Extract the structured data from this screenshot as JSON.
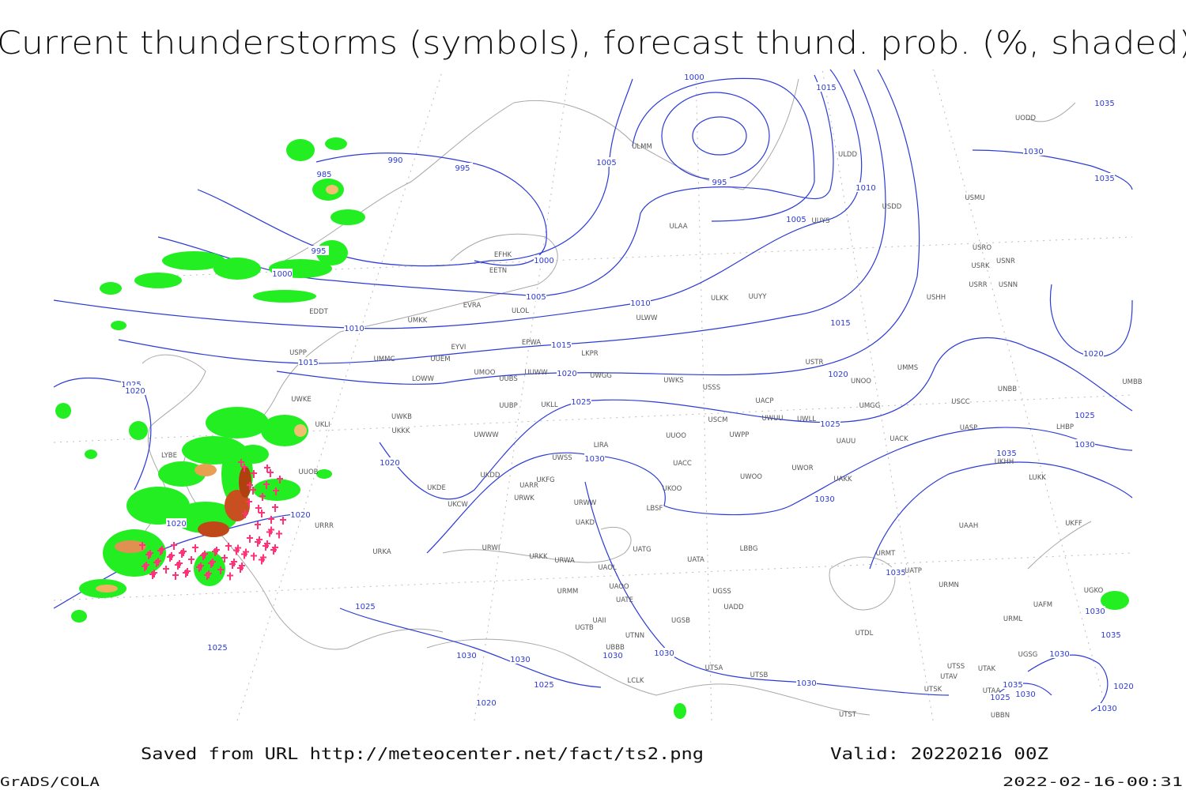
{
  "title": "Current thunderstorms (symbols), forecast thund. prob. (%, shaded)",
  "isobar_labels": [
    "1000",
    "1015",
    "990",
    "995",
    "1005",
    "985",
    "995",
    "1010",
    "1005",
    "995",
    "1000",
    "1000",
    "1005",
    "1010",
    "1010",
    "1015",
    "1015",
    "1015",
    "1020",
    "1020",
    "1025",
    "1020",
    "1025",
    "1025",
    "1030",
    "1020",
    "1030",
    "1020",
    "1020",
    "1035",
    "1025",
    "1025",
    "1030",
    "1030",
    "1030",
    "1030",
    "1025",
    "1030",
    "1020",
    "1035",
    "1030",
    "1035",
    "1020",
    "1025",
    "1030",
    "1035",
    "1030",
    "1035",
    "1030",
    "1035",
    "1030",
    "1025",
    "1020",
    "1030"
  ],
  "stations": [
    "ULMM",
    "ULDD",
    "UODD",
    "USDD",
    "USMU",
    "ULAA",
    "UUYS",
    "USRO",
    "USRK",
    "USNR",
    "USRR",
    "USNN",
    "USHH",
    "EFHK",
    "EETN",
    "EVRA",
    "ULOL",
    "EDDT",
    "UMKK",
    "ULKK",
    "UUYY",
    "ULWW",
    "EYVI",
    "EPWA",
    "UMMC",
    "UUEM",
    "LKPR",
    "USPP",
    "USTR",
    "UMMS",
    "UMOO",
    "UUBS",
    "UUWW",
    "UWGG",
    "UWKS",
    "USSS",
    "UNOO",
    "UNBB",
    "UMBB",
    "LOWW",
    "UWKE",
    "UACP",
    "USCC",
    "UMGG",
    "UUBP",
    "UKLL",
    "UWKB",
    "UWUU",
    "UWLL",
    "USCM",
    "UAUU",
    "UACK",
    "UASP",
    "LHBP",
    "UKLI",
    "UKKK",
    "UWWW",
    "UWPP",
    "UUOO",
    "LIRA",
    "LYBE",
    "UUOB",
    "UWSS",
    "UACC",
    "UKHH",
    "UKFG",
    "UKDD",
    "UARR",
    "UWOO",
    "UWOR",
    "UAKK",
    "LUKK",
    "UKDE",
    "URWK",
    "UKOO",
    "UKCW",
    "URWW",
    "LBSF",
    "URRR",
    "UAKD",
    "UAAH",
    "UKFF",
    "URWI",
    "UATG",
    "LBBG",
    "URKA",
    "URKK",
    "URWA",
    "UATA",
    "URMT",
    "UAOL",
    "UATP",
    "UGSS",
    "URMM",
    "UAOO",
    "URMN",
    "UATE",
    "UADD",
    "UAFM",
    "UGKO",
    "UAII",
    "URML",
    "UGSB",
    "UGTB",
    "UTNN",
    "UTDL",
    "UGSG",
    "UBBB",
    "UTSA",
    "UTSS",
    "UTAK",
    "UTSB",
    "UTAV",
    "UTSK",
    "UTAA",
    "UTST",
    "UBBN",
    "LCLK"
  ],
  "footer": {
    "source": "Saved from URL http://meteocenter.net/fact/ts2.png",
    "valid": "Valid: 20220216 00Z",
    "software": "GrADS/COLA",
    "timestamp": "2022-02-16-00:31"
  }
}
